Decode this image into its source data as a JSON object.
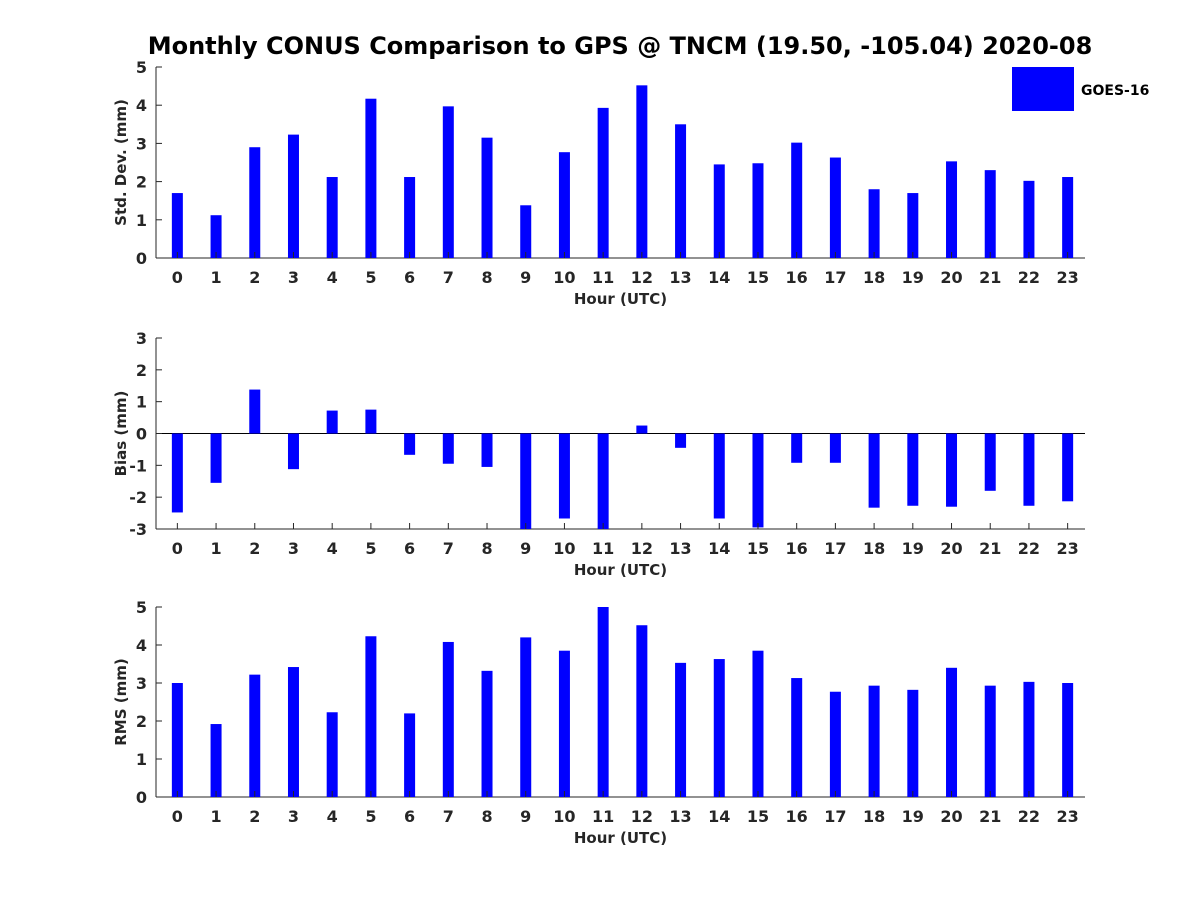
{
  "title": "Monthly CONUS Comparison to GPS @ TNCM (19.50, -105.04) 2020-08",
  "legend": {
    "label": "GOES-16",
    "color": "#0000ff",
    "position": "top-right"
  },
  "chart_data": [
    {
      "type": "bar",
      "xlabel": "Hour (UTC)",
      "ylabel": "Std. Dev. (mm)",
      "ylim": [
        0,
        5
      ],
      "yticks": [
        "0",
        "1",
        "2",
        "3",
        "4",
        "5"
      ],
      "categories": [
        "0",
        "1",
        "2",
        "3",
        "4",
        "5",
        "6",
        "7",
        "8",
        "9",
        "10",
        "11",
        "12",
        "13",
        "14",
        "15",
        "16",
        "17",
        "18",
        "19",
        "20",
        "21",
        "22",
        "23"
      ],
      "series": [
        {
          "name": "GOES-16",
          "color": "#0000ff",
          "values": [
            1.7,
            1.12,
            2.9,
            3.23,
            2.12,
            4.17,
            2.12,
            3.97,
            3.15,
            1.38,
            2.77,
            3.93,
            4.52,
            3.5,
            2.45,
            2.48,
            3.02,
            2.63,
            1.8,
            1.7,
            2.53,
            2.3,
            2.02,
            2.12
          ]
        }
      ]
    },
    {
      "type": "bar",
      "xlabel": "Hour (UTC)",
      "ylabel": "Bias (mm)",
      "ylim": [
        -3,
        3
      ],
      "yticks": [
        "-3",
        "-2",
        "-1",
        "0",
        "1",
        "2",
        "3"
      ],
      "categories": [
        "0",
        "1",
        "2",
        "3",
        "4",
        "5",
        "6",
        "7",
        "8",
        "9",
        "10",
        "11",
        "12",
        "13",
        "14",
        "15",
        "16",
        "17",
        "18",
        "19",
        "20",
        "21",
        "22",
        "23"
      ],
      "series": [
        {
          "name": "GOES-16",
          "color": "#0000ff",
          "values": [
            -2.48,
            -1.55,
            1.38,
            -1.12,
            0.72,
            0.75,
            -0.67,
            -0.95,
            -1.05,
            -3.0,
            -2.67,
            -3.0,
            0.25,
            -0.45,
            -2.67,
            -2.95,
            -0.92,
            -0.92,
            -2.33,
            -2.27,
            -2.3,
            -1.8,
            -2.27,
            -2.13
          ]
        }
      ]
    },
    {
      "type": "bar",
      "xlabel": "Hour (UTC)",
      "ylabel": "RMS (mm)",
      "ylim": [
        0,
        5
      ],
      "yticks": [
        "0",
        "1",
        "2",
        "3",
        "4",
        "5"
      ],
      "categories": [
        "0",
        "1",
        "2",
        "3",
        "4",
        "5",
        "6",
        "7",
        "8",
        "9",
        "10",
        "11",
        "12",
        "13",
        "14",
        "15",
        "16",
        "17",
        "18",
        "19",
        "20",
        "21",
        "22",
        "23"
      ],
      "series": [
        {
          "name": "GOES-16",
          "color": "#0000ff",
          "values": [
            3.0,
            1.92,
            3.22,
            3.42,
            2.23,
            4.23,
            2.2,
            4.08,
            3.32,
            4.2,
            3.85,
            5.0,
            4.52,
            3.53,
            3.63,
            3.85,
            3.13,
            2.77,
            2.93,
            2.82,
            3.4,
            2.93,
            3.03,
            3.0
          ]
        }
      ]
    }
  ]
}
